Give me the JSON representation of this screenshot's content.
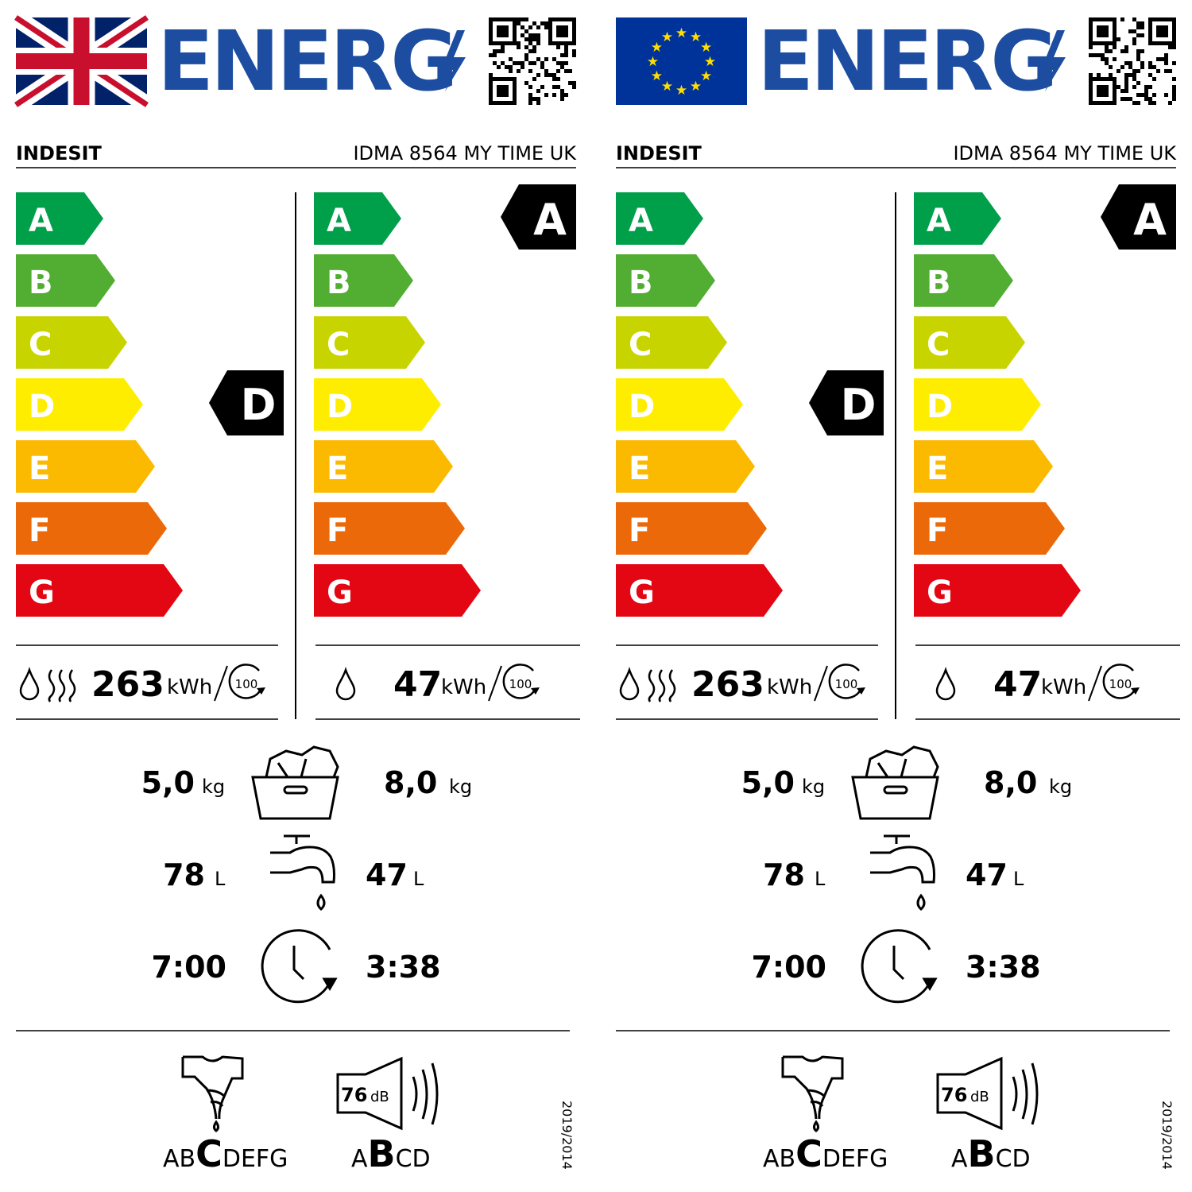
{
  "labels": [
    {
      "flag": "uk-flag",
      "offset": 20
    },
    {
      "flag": "eu-flag",
      "offset": 775
    }
  ],
  "logo_text": "ENERG",
  "brand": "INDESIT",
  "model": "IDMA 8564 MY TIME UK",
  "scale_letters": [
    "A",
    "B",
    "C",
    "D",
    "E",
    "F",
    "G"
  ],
  "scale_colors": [
    "#00a04b",
    "#52ae32",
    "#c8d400",
    "#ffed00",
    "#fbba00",
    "#eb6909",
    "#e30613"
  ],
  "wash_dry": {
    "class": "D",
    "energy": "263",
    "unit": "kWh",
    "cycles": "100"
  },
  "wash_only": {
    "class": "A",
    "energy": "47",
    "unit": "kWh",
    "cycles": "100"
  },
  "capacity": {
    "wash_dry": "5,0",
    "wash": "8,0",
    "unit": "kg"
  },
  "water": {
    "wash_dry": "78",
    "wash": "47",
    "unit": "L"
  },
  "duration": {
    "wash_dry": "7:00",
    "wash": "3:38"
  },
  "spin_class": {
    "before": "AB",
    "selected": "C",
    "after": "DEFG"
  },
  "noise": {
    "value": "76",
    "unit": "dB",
    "before": "A",
    "selected": "B",
    "after": "CD"
  },
  "regulation": "2019/2014",
  "colors": {
    "logo_blue": "#1c4da1",
    "eu_blue": "#003399",
    "eu_star": "#ffdd00"
  }
}
